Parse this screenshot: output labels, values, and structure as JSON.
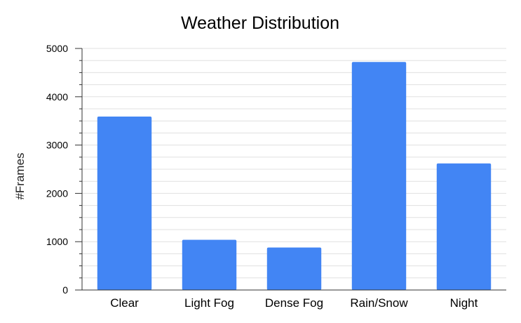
{
  "chart_data": {
    "type": "bar",
    "title": "Weather Distribution",
    "xlabel": "",
    "ylabel": "#Frames",
    "categories": [
      "Clear",
      "Light Fog",
      "Dense Fog",
      "Rain/Snow",
      "Night"
    ],
    "values": [
      3590,
      1040,
      880,
      4720,
      2620
    ],
    "ylim": [
      0,
      5000
    ],
    "yticks": [
      0,
      1000,
      2000,
      3000,
      4000,
      5000
    ],
    "ytick_labels": [
      "0",
      "1000",
      "2000",
      "3000",
      "4000",
      "5000"
    ],
    "minor_ticks_per_major": 3,
    "grid": true,
    "legend": "none",
    "bar_color": "#4285F4",
    "grid_color": "#e0e0e0",
    "axis_color": "#333333"
  }
}
